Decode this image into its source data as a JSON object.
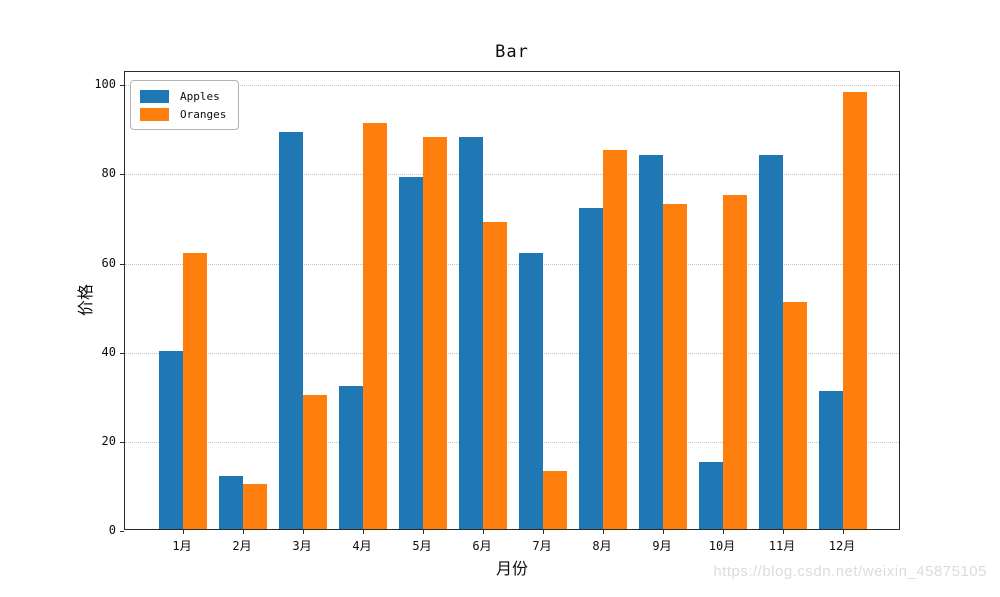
{
  "chart_data": {
    "type": "bar",
    "title": "Bar",
    "xlabel": "月份",
    "ylabel": "价格",
    "categories": [
      "1月",
      "2月",
      "3月",
      "4月",
      "5月",
      "6月",
      "7月",
      "8月",
      "9月",
      "10月",
      "11月",
      "12月"
    ],
    "series": [
      {
        "name": "Apples",
        "color": "#1f77b4",
        "values": [
          40,
          12,
          89,
          32,
          79,
          88,
          62,
          72,
          84,
          15,
          84,
          31
        ]
      },
      {
        "name": "Oranges",
        "color": "#ff7f0e",
        "values": [
          62,
          10,
          30,
          91,
          88,
          69,
          13,
          85,
          73,
          75,
          51,
          98
        ]
      }
    ],
    "ylim": [
      0,
      103
    ],
    "yticks": [
      0,
      20,
      40,
      60,
      80,
      100
    ],
    "grid": "horizontal dotted",
    "legend_position": "upper left"
  },
  "watermark": {
    "text": "https://blog.csdn.net/weixin_45875105"
  },
  "colors": {
    "apples": "#1f77b4",
    "oranges": "#ff7f0e",
    "grid": "#c3c3c3",
    "spine": "#2b2b2b",
    "watermark": "#dcdcdc"
  }
}
